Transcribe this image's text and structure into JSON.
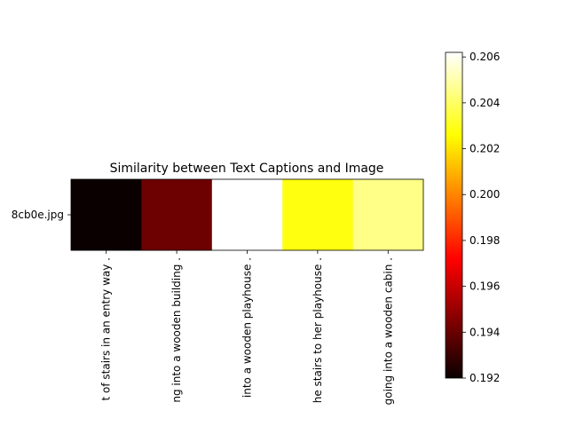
{
  "chart_data": {
    "type": "heatmap",
    "title": "Similarity between Text Captions and Image",
    "y_categories": [
      "8cb0e.jpg"
    ],
    "x_categories": [
      "t of stairs in an entry way .",
      "ng into a wooden building .",
      "into a wooden playhouse .",
      "he stairs to her playhouse .",
      "going into a wooden cabin ."
    ],
    "values": [
      [
        0.192,
        0.194,
        0.2062,
        0.2028,
        0.2045
      ]
    ],
    "colormap": "hot",
    "colorbar": {
      "range": [
        0.192,
        0.2062
      ],
      "ticks": [
        0.192,
        0.194,
        0.196,
        0.198,
        0.2,
        0.202,
        0.204,
        0.206
      ],
      "tick_labels": [
        "0.192",
        "0.194",
        "0.196",
        "0.198",
        "0.200",
        "0.202",
        "0.204",
        "0.206"
      ]
    },
    "grid": false,
    "legend": "colorbar-right"
  }
}
